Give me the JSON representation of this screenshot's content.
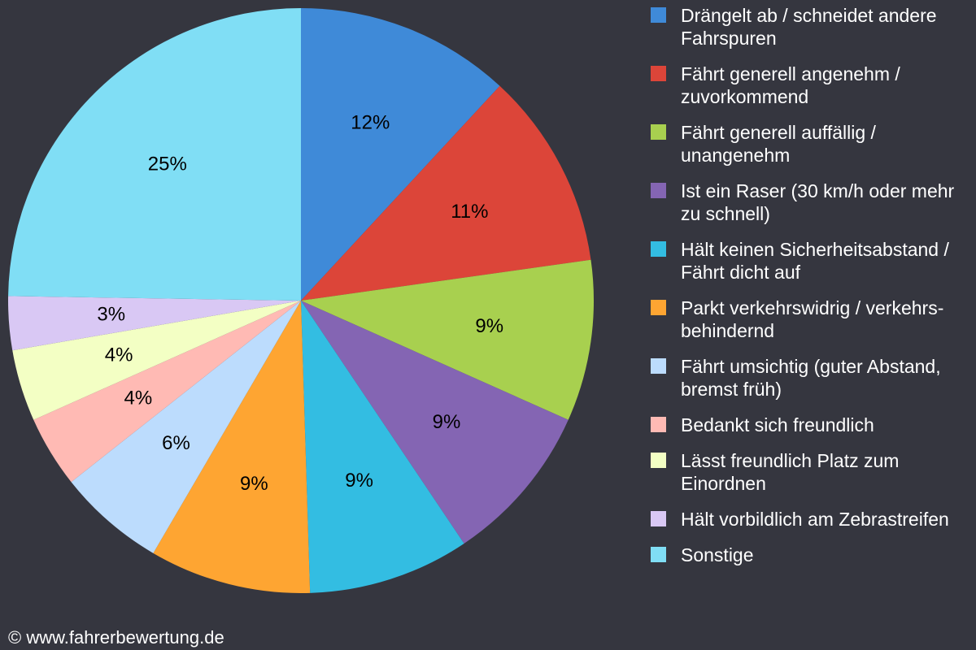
{
  "chart_data": {
    "type": "pie",
    "categories": [
      "Drängelt ab / schneidet andere Fahrspuren",
      "Fährt generell angenehm / zuvorkommend",
      "Fährt generell auffällig / unangenehm",
      "Ist ein Raser (30 km/h oder mehr zu schnell)",
      "Hält keinen Sicherheitsabstand / Fährt dicht auf",
      "Parkt verkehrswidrig / verkehrs-behindernd",
      "Fährt umsichtig (guter Abstand, bremst früh)",
      "Bedankt sich freundlich",
      "Lässt freundlich Platz zum Einordnen",
      "Hält vorbildlich am Zebrastreifen",
      "Sonstige"
    ],
    "values": [
      12,
      11,
      9,
      9,
      9,
      9,
      6,
      4,
      4,
      3,
      25
    ],
    "value_labels": [
      "12%",
      "11%",
      "9%",
      "9%",
      "9%",
      "9%",
      "6%",
      "4%",
      "4%",
      "3%",
      "25%"
    ],
    "colors": [
      "#3f8ad8",
      "#dc4539",
      "#a8d04f",
      "#8465b3",
      "#33bde2",
      "#fea532",
      "#bcdcfd",
      "#ffbab4",
      "#f3ffc4",
      "#d9c8f4",
      "#80def5"
    ],
    "source": "© www.fahrerbewertung.de"
  }
}
